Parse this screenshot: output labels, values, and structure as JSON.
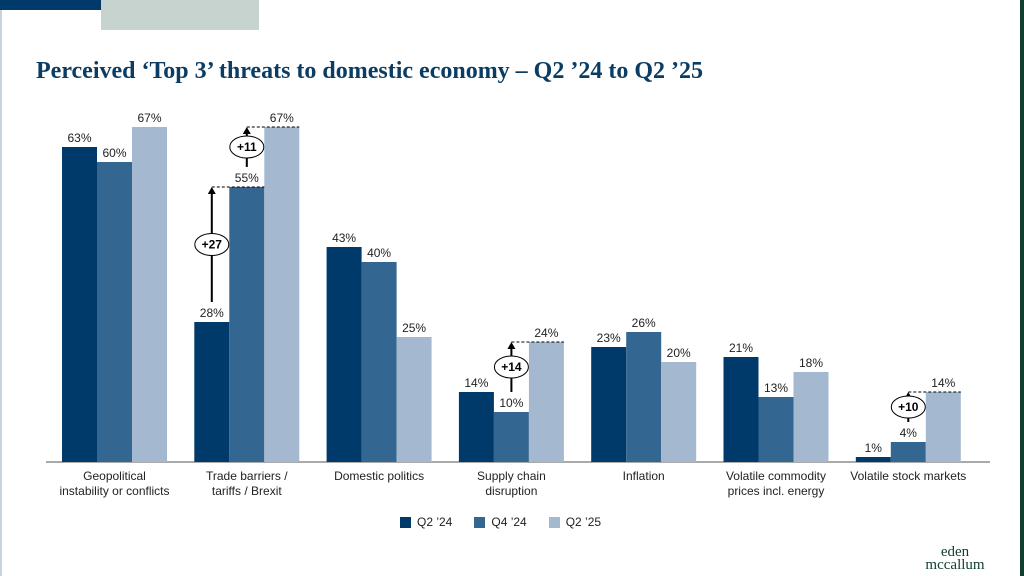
{
  "title": "Perceived ‘Top 3’ threats to domestic economy – Q2 ’24 to Q2 ’25",
  "logo_text": [
    "eden",
    "mccallum"
  ],
  "colors": {
    "q2_24": "#003a6b",
    "q4_24": "#336690",
    "q2_25": "#a4b9cf",
    "title": "#0b3d64"
  },
  "chart_data": {
    "type": "bar",
    "categories": [
      [
        "Geopolitical",
        "instability or conflicts"
      ],
      [
        "Trade barriers /",
        "tariffs / Brexit"
      ],
      [
        "Domestic politics"
      ],
      [
        "Supply chain",
        "disruption"
      ],
      [
        "Inflation"
      ],
      [
        "Volatile commodity",
        "prices incl. energy"
      ],
      [
        "Volatile stock markets"
      ]
    ],
    "series": [
      {
        "name": "Q2 ’24",
        "values": [
          63,
          28,
          43,
          14,
          23,
          21,
          1
        ]
      },
      {
        "name": "Q4 ’24",
        "values": [
          60,
          55,
          40,
          10,
          26,
          13,
          4
        ]
      },
      {
        "name": "Q2 ’25",
        "values": [
          67,
          67,
          25,
          24,
          20,
          18,
          14
        ]
      }
    ],
    "value_suffix": "%",
    "ylim": [
      0,
      70
    ],
    "annotations": [
      {
        "category_index": 1,
        "from_series": 0,
        "to_series": 1,
        "label": "+27"
      },
      {
        "category_index": 1,
        "from_series": 1,
        "to_series": 2,
        "label": "+11"
      },
      {
        "category_index": 3,
        "from_series": 1,
        "to_series": 2,
        "label": "+14"
      },
      {
        "category_index": 6,
        "from_series": 1,
        "to_series": 2,
        "label": "+10"
      }
    ],
    "legend_position": "bottom"
  }
}
